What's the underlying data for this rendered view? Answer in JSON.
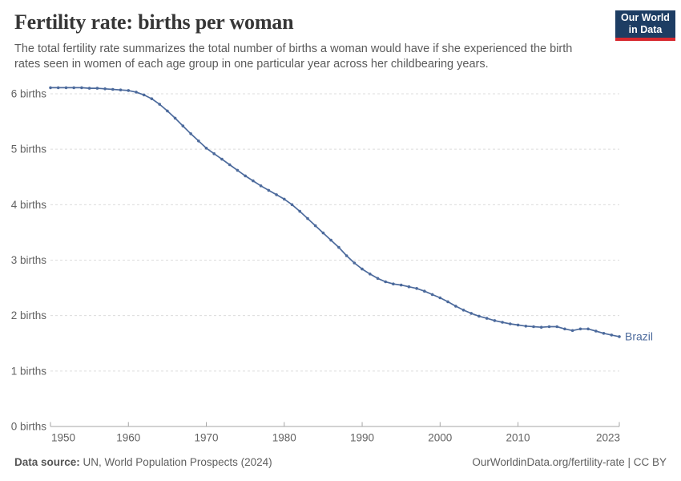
{
  "header": {
    "title": "Fertility rate: births per woman",
    "subtitle_lines": [
      "The total fertility rate summarizes the total number of births a woman would have if she experienced the birth",
      "rates seen in women of each age group in one particular year across her childbearing years."
    ]
  },
  "logo": {
    "line1": "Our World",
    "line2": "in Data"
  },
  "chart_data": {
    "type": "line",
    "title": "Fertility rate: births per woman",
    "xlabel": "",
    "ylabel": "",
    "ylim": [
      0,
      6.2
    ],
    "grid": "dashed-horizontal",
    "legend": "end-of-line-label",
    "line_color": "#4c6a9c",
    "yticks": [
      0,
      1,
      2,
      3,
      4,
      5,
      6
    ],
    "ytick_labels": [
      "0 births",
      "1 births",
      "2 births",
      "3 births",
      "4 births",
      "5 births",
      "6 births"
    ],
    "xticks": [
      1950,
      1960,
      1970,
      1980,
      1990,
      2000,
      2010,
      2023
    ],
    "x": [
      1950,
      1951,
      1952,
      1953,
      1954,
      1955,
      1956,
      1957,
      1958,
      1959,
      1960,
      1961,
      1962,
      1963,
      1964,
      1965,
      1966,
      1967,
      1968,
      1969,
      1970,
      1971,
      1972,
      1973,
      1974,
      1975,
      1976,
      1977,
      1978,
      1979,
      1980,
      1981,
      1982,
      1983,
      1984,
      1985,
      1986,
      1987,
      1988,
      1989,
      1990,
      1991,
      1992,
      1993,
      1994,
      1995,
      1996,
      1997,
      1998,
      1999,
      2000,
      2001,
      2002,
      2003,
      2004,
      2005,
      2006,
      2007,
      2008,
      2009,
      2010,
      2011,
      2012,
      2013,
      2014,
      2015,
      2016,
      2017,
      2018,
      2019,
      2020,
      2021,
      2022,
      2023
    ],
    "series": [
      {
        "name": "Brazil",
        "values": [
          6.11,
          6.11,
          6.11,
          6.11,
          6.11,
          6.1,
          6.1,
          6.09,
          6.08,
          6.07,
          6.06,
          6.03,
          5.98,
          5.91,
          5.81,
          5.69,
          5.56,
          5.42,
          5.28,
          5.15,
          5.02,
          4.92,
          4.82,
          4.72,
          4.62,
          4.52,
          4.43,
          4.34,
          4.26,
          4.18,
          4.1,
          4.0,
          3.88,
          3.75,
          3.62,
          3.49,
          3.36,
          3.23,
          3.08,
          2.95,
          2.84,
          2.75,
          2.67,
          2.61,
          2.57,
          2.55,
          2.52,
          2.49,
          2.44,
          2.38,
          2.32,
          2.25,
          2.17,
          2.1,
          2.04,
          1.99,
          1.95,
          1.91,
          1.88,
          1.85,
          1.83,
          1.81,
          1.8,
          1.79,
          1.8,
          1.8,
          1.76,
          1.73,
          1.76,
          1.76,
          1.72,
          1.68,
          1.65,
          1.62
        ]
      }
    ]
  },
  "footer": {
    "source_label": "Data source:",
    "source_text": "UN, World Population Prospects (2024)",
    "link_text": "OurWorldinData.org/fertility-rate | CC BY"
  },
  "colors": {
    "accent_line": "#4c6a9c",
    "logo_navy": "#1d3d63",
    "logo_red": "#d7282e",
    "gridline": "#dcdcdc",
    "axis": "#a6a6a6",
    "tick_label": "#636363"
  }
}
